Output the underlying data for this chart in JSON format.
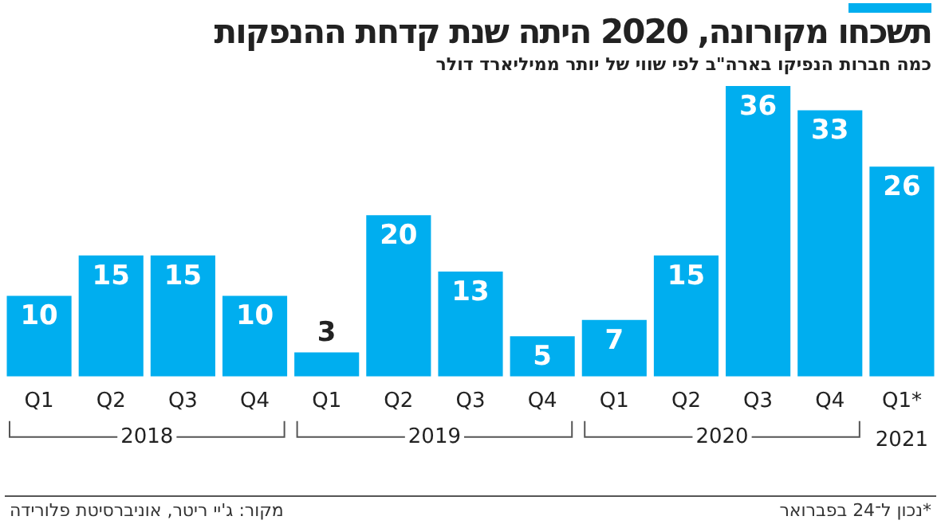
{
  "chart_data": {
    "type": "bar",
    "title": "תשכחו מקורונה, 2020 היתה שנת קדחת ההנפקות",
    "subtitle": "כמה חברות הנפיקו בארה\"ב לפי שווי של יותר ממיליארד דולר",
    "categories": [
      "Q1",
      "Q2",
      "Q3",
      "Q4",
      "Q1",
      "Q2",
      "Q3",
      "Q4",
      "Q1",
      "Q2",
      "Q3",
      "Q4",
      "Q1*"
    ],
    "values": [
      10,
      15,
      15,
      10,
      3,
      20,
      13,
      5,
      7,
      15,
      36,
      33,
      26
    ],
    "color": "#00aeef",
    "data_labels": true,
    "grid": false,
    "legend": false,
    "annotations": [
      "2018",
      "2019",
      "2020",
      "2021",
      "מקור: ג'יי ריטר, אוניברסיטת פלורידה",
      "*נכון ל־24 בפברואר"
    ]
  }
}
